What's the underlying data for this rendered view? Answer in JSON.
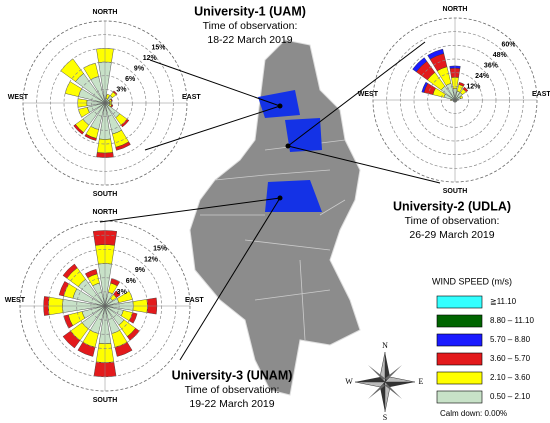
{
  "chart_data": [
    {
      "type": "windrose",
      "title": "University-1 (UAM)",
      "subtitle": "Time of observation:",
      "date": "18-22 March 2019",
      "categories": [
        "NORTH",
        null,
        null,
        null,
        "EAST",
        null,
        null,
        null,
        "SOUTH",
        null,
        null,
        null,
        "WEST",
        null,
        null,
        null
      ],
      "rlim": [
        0,
        18
      ],
      "rticks": [
        {
          "value": 3,
          "label": "3%"
        },
        {
          "value": 6,
          "label": "6%"
        },
        {
          "value": 9,
          "label": "9%"
        },
        {
          "value": 12,
          "label": "12%"
        },
        {
          "value": 15,
          "label": "15%"
        }
      ],
      "series": [
        {
          "color": "#c8e2c8",
          "values": [
            9,
            1,
            2,
            1,
            1,
            1,
            4,
            7,
            8,
            6,
            6,
            4,
            4,
            6,
            8,
            6
          ]
        },
        {
          "color": "#ffff00",
          "values": [
            3,
            1,
            1,
            0.5,
            0.5,
            0.5,
            2,
            3,
            3,
            2,
            2,
            2,
            2,
            3,
            4,
            3
          ]
        },
        {
          "color": "#e31a1c",
          "values": [
            0,
            0,
            0.3,
            0.2,
            0,
            0.3,
            0.5,
            0.7,
            1,
            0.5,
            0.5,
            0,
            0,
            0,
            0,
            0
          ]
        }
      ]
    },
    {
      "type": "windrose",
      "title": "University-2 (UDLA)",
      "subtitle": "Time of observation:",
      "date": "26-29 March 2019",
      "categories": [
        "NORTH",
        null,
        null,
        null,
        "EAST",
        null,
        null,
        null,
        "SOUTH",
        null,
        null,
        null,
        "WEST",
        null,
        null,
        null
      ],
      "rlim": [
        0,
        72
      ],
      "rticks": [
        {
          "value": 12,
          "label": "12%"
        },
        {
          "value": 24,
          "label": "24%"
        },
        {
          "value": 36,
          "label": "36%"
        },
        {
          "value": 48,
          "label": "48%"
        },
        {
          "value": 60,
          "label": "60%"
        }
      ],
      "series": [
        {
          "color": "#c8e2c8",
          "values": [
            10,
            8,
            8,
            5,
            3,
            2,
            2,
            2,
            2,
            2,
            2,
            2,
            3,
            10,
            15,
            15
          ]
        },
        {
          "color": "#ffff00",
          "values": [
            10,
            6,
            4,
            2,
            0,
            0,
            0,
            0,
            0,
            0,
            0,
            0,
            1,
            10,
            15,
            15
          ]
        },
        {
          "color": "#e31a1c",
          "values": [
            8,
            2,
            2,
            0,
            0,
            0,
            0,
            0,
            0,
            0,
            0,
            0,
            0,
            8,
            12,
            12
          ]
        },
        {
          "color": "#1a1aff",
          "values": [
            2,
            0,
            0,
            0,
            0,
            0,
            0,
            0,
            0,
            0,
            0,
            0,
            0,
            2,
            4,
            4
          ]
        }
      ]
    },
    {
      "type": "windrose",
      "title": "University-3 (UNAM)",
      "subtitle": "Time of observation:",
      "date": "19-22 March 2019",
      "categories": [
        "NORTH",
        null,
        null,
        null,
        "EAST",
        null,
        null,
        null,
        "SOUTH",
        null,
        null,
        null,
        "WEST",
        null,
        null,
        null
      ],
      "rlim": [
        0,
        18
      ],
      "rticks": [
        {
          "value": 3,
          "label": "3%"
        },
        {
          "value": 6,
          "label": "6%"
        },
        {
          "value": 9,
          "label": "9%"
        },
        {
          "value": 12,
          "label": "12%"
        },
        {
          "value": 15,
          "label": "15%"
        }
      ],
      "series": [
        {
          "color": "#c8e2c8",
          "values": [
            9,
            3,
            2,
            3,
            6,
            4,
            5,
            6,
            8,
            6,
            6,
            5,
            9,
            7,
            7,
            5
          ]
        },
        {
          "color": "#ffff00",
          "values": [
            4,
            2,
            1,
            3,
            3,
            2,
            3,
            3,
            4,
            3,
            3,
            3,
            3,
            2,
            3,
            2
          ]
        },
        {
          "color": "#e31a1c",
          "values": [
            3,
            1,
            1,
            0,
            2,
            1,
            1,
            2,
            3,
            2,
            2,
            1,
            1,
            1,
            1,
            1
          ]
        }
      ]
    }
  ],
  "legend": {
    "title": "WIND SPEED (m/s)",
    "entries": [
      {
        "label": "≧11.10",
        "color": "#33ffff"
      },
      {
        "label": "8.80 – 11.10",
        "color": "#006400"
      },
      {
        "label": "5.70 – 8.80",
        "color": "#1a1aff"
      },
      {
        "label": "3.60 – 5.70",
        "color": "#e31a1c"
      },
      {
        "label": "2.10 – 3.60",
        "color": "#ffff00"
      },
      {
        "label": "0.50 – 2.10",
        "color": "#c8e2c8"
      }
    ],
    "note": "Calm down: 0.00%"
  },
  "compass": [
    "N",
    "E",
    "S",
    "W"
  ]
}
